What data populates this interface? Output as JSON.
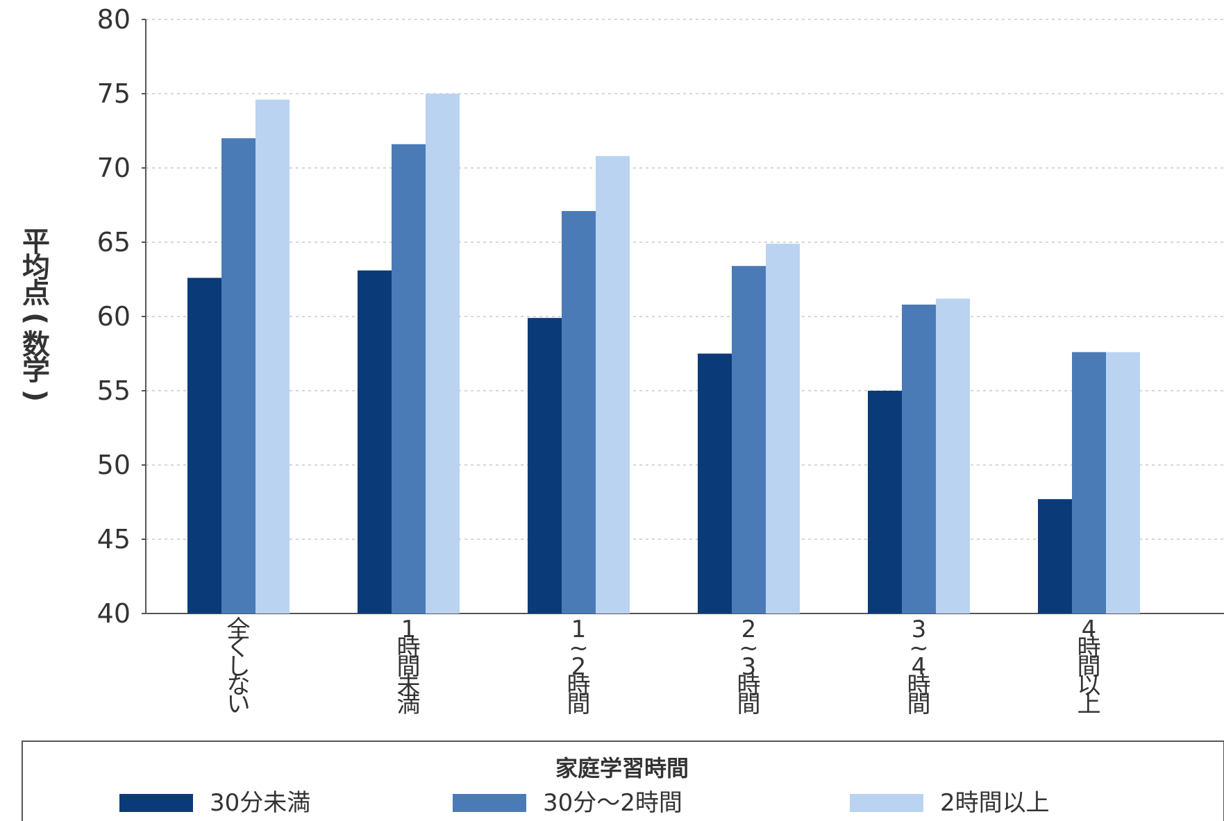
{
  "chart_data": {
    "type": "bar",
    "ylabel": "平均点(数学)",
    "xlabel": "",
    "ylim": [
      40,
      80
    ],
    "yticks": [
      40,
      45,
      50,
      55,
      60,
      65,
      70,
      75,
      80
    ],
    "grid": true,
    "categories": [
      "全くしない",
      "1時間未満",
      "1~2時間",
      "2~3時間",
      "3~4時間",
      "4時間以上"
    ],
    "category_lines": [
      [
        "全",
        "く",
        "し",
        "な",
        "い"
      ],
      [
        "1",
        "時",
        "間",
        "未",
        "満"
      ],
      [
        "1",
        "~",
        "2",
        "時",
        "間"
      ],
      [
        "2",
        "~",
        "3",
        "時",
        "間"
      ],
      [
        "3",
        "~",
        "4",
        "時",
        "間"
      ],
      [
        "4",
        "時",
        "間",
        "以",
        "上"
      ]
    ],
    "legend": {
      "title": "家庭学習時間",
      "position": "bottom"
    },
    "series": [
      {
        "name": "30分未満",
        "color": "#0b3a78",
        "values": [
          62.6,
          63.1,
          59.9,
          57.5,
          55.0,
          47.7
        ]
      },
      {
        "name": "30分〜2時間",
        "color": "#4a7bb7",
        "values": [
          72.0,
          71.6,
          67.1,
          63.4,
          60.8,
          57.6
        ]
      },
      {
        "name": "2時間以上",
        "color": "#b9d3f0",
        "values": [
          74.6,
          75.0,
          70.8,
          64.9,
          61.2,
          57.6
        ]
      }
    ]
  }
}
